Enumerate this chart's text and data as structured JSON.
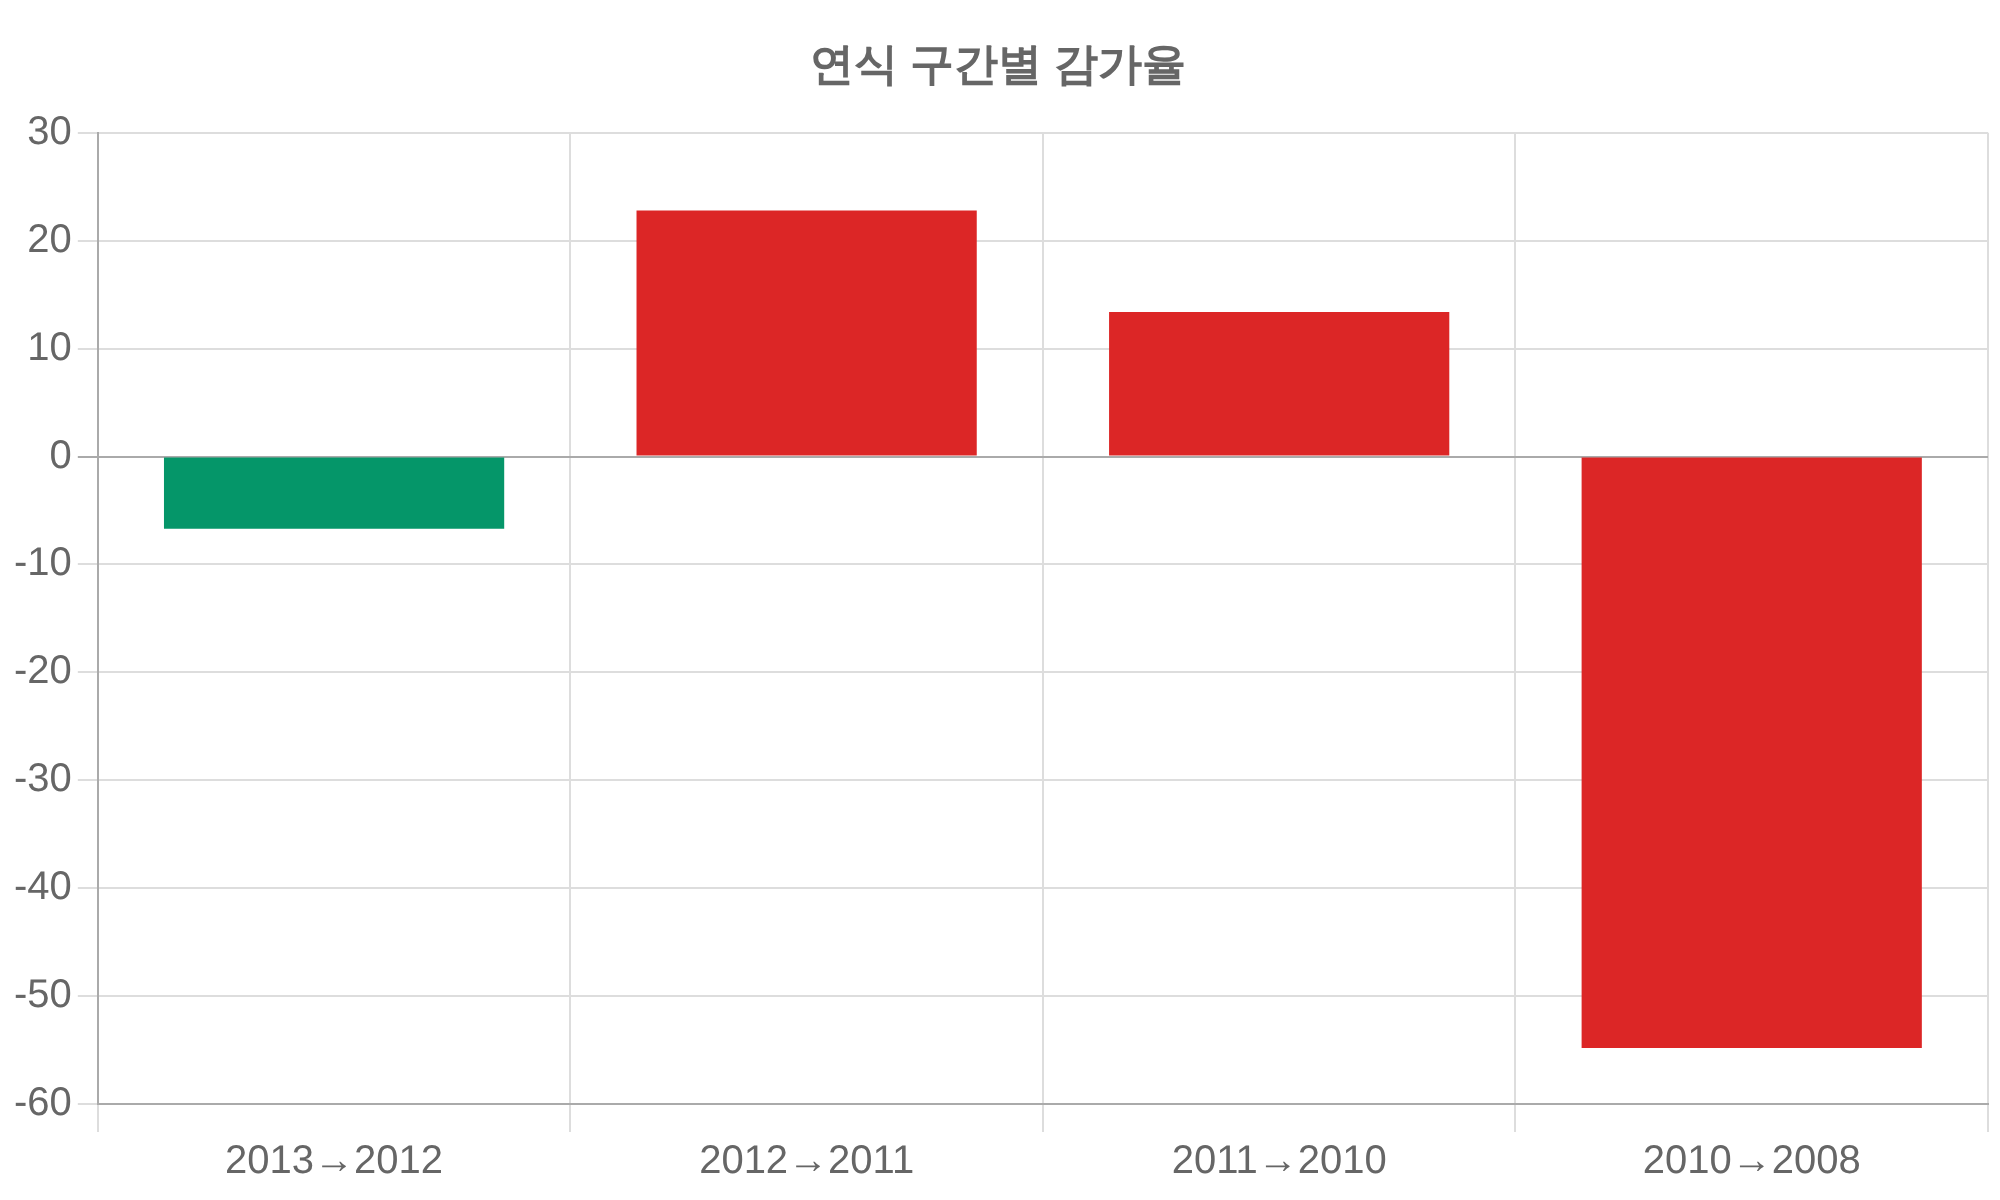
{
  "chart_data": {
    "type": "bar",
    "title": "연식 구간별 감가율",
    "categories": [
      "2013→2012",
      "2012→2011",
      "2011→2010",
      "2010→2008"
    ],
    "values": [
      -6.7,
      22.8,
      13.4,
      -54.8
    ],
    "colors": [
      "#059669",
      "#dc2626",
      "#dc2626",
      "#dc2626"
    ],
    "ylim": [
      -60,
      30
    ],
    "yticks": [
      -60,
      -50,
      -40,
      -30,
      -20,
      -10,
      0,
      10,
      20,
      30
    ],
    "grid": true,
    "legend": false
  }
}
